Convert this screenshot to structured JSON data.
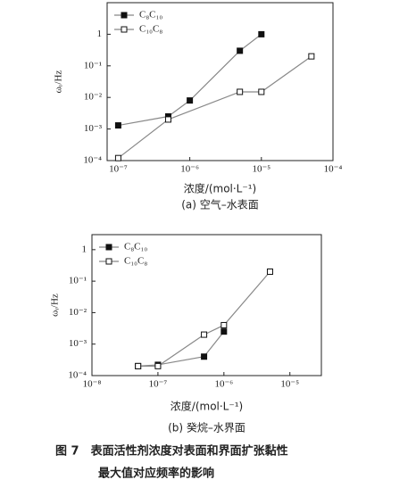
{
  "chart_data": [
    {
      "type": "line",
      "xscale": "log",
      "yscale": "log",
      "xlabel": "浓度/(mol·L⁻¹)",
      "ylabel": "ωᵣ/Hz",
      "caption": "(a) 空气–水表面",
      "xlim": [
        7e-08,
        0.0001
      ],
      "ylim": [
        0.0001,
        10
      ],
      "xticks": [
        {
          "value": 1e-07,
          "label": "10⁻⁷"
        },
        {
          "value": 1e-06,
          "label": "10⁻⁶"
        },
        {
          "value": 1e-05,
          "label": "10⁻⁵"
        },
        {
          "value": 0.0001,
          "label": "10⁻⁴"
        }
      ],
      "yticks": [
        {
          "value": 0.0001,
          "label": "10⁻⁴"
        },
        {
          "value": 0.001,
          "label": "10⁻³"
        },
        {
          "value": 0.01,
          "label": "10⁻²"
        },
        {
          "value": 0.1,
          "label": "10⁻¹"
        },
        1
      ],
      "legend": "upper left",
      "series": [
        {
          "name": "C₈C₁₀",
          "color": "#888888",
          "marker": "filled-square",
          "x": [
            1e-07,
            5e-07,
            1e-06,
            5e-06,
            1e-05
          ],
          "values": [
            0.0013,
            0.0025,
            0.008,
            0.3,
            1
          ]
        },
        {
          "name": "C₁₀C₈",
          "color": "#888888",
          "marker": "open-square",
          "x": [
            1e-07,
            5e-07,
            5e-06,
            1e-05,
            5e-05
          ],
          "values": [
            0.00012,
            0.002,
            0.015,
            0.015,
            0.2
          ]
        }
      ]
    },
    {
      "type": "line",
      "xscale": "log",
      "yscale": "log",
      "xlabel": "浓度/(mol·L⁻¹)",
      "ylabel": "ωᵣ/Hz",
      "caption": "(b) 癸烷–水界面",
      "xlim": [
        1e-08,
        3e-05
      ],
      "ylim": [
        0.0001,
        3
      ],
      "xticks": [
        {
          "value": 1e-08,
          "label": "10⁻⁸"
        },
        {
          "value": 1e-07,
          "label": "10⁻⁷"
        },
        {
          "value": 1e-06,
          "label": "10⁻⁶"
        },
        {
          "value": 1e-05,
          "label": "10⁻⁵"
        }
      ],
      "yticks": [
        {
          "value": 0.0001,
          "label": "10⁻⁴"
        },
        {
          "value": 0.001,
          "label": "10⁻³"
        },
        {
          "value": 0.01,
          "label": "10⁻²"
        },
        {
          "value": 0.1,
          "label": "10⁻¹"
        },
        1
      ],
      "legend": "upper left",
      "series": [
        {
          "name": "C₈C₁₀",
          "color": "#888888",
          "marker": "filled-square",
          "x": [
            5e-08,
            1e-07,
            5e-07,
            1e-06
          ],
          "values": [
            0.0002,
            0.00022,
            0.0004,
            0.0025
          ]
        },
        {
          "name": "C₁₀C₈",
          "color": "#888888",
          "marker": "open-square",
          "x": [
            5e-08,
            1e-07,
            5e-07,
            1e-06,
            5e-06
          ],
          "values": [
            0.0002,
            0.0002,
            0.002,
            0.004,
            0.2
          ]
        }
      ]
    }
  ],
  "figure_caption": [
    "图 7　表面活性剂浓度对表面和界面扩张黏性",
    "最大值对应频率的影响"
  ]
}
